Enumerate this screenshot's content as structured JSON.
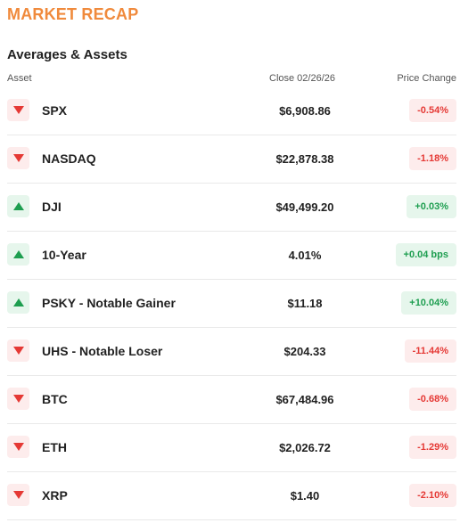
{
  "header": {
    "title": "MARKET RECAP"
  },
  "section": {
    "title": "Averages & Assets"
  },
  "columns": {
    "asset": "Asset",
    "close": "Close 02/26/26",
    "change": "Price Change"
  },
  "colors": {
    "accent": "#f08a3c",
    "down": "#e53935",
    "up": "#1e9e50"
  },
  "rows": [
    {
      "asset": "SPX",
      "close": "$6,908.86",
      "change": "-0.54%",
      "direction": "down",
      "icon": "triangle-down-icon"
    },
    {
      "asset": "NASDAQ",
      "close": "$22,878.38",
      "change": "-1.18%",
      "direction": "down",
      "icon": "triangle-down-icon"
    },
    {
      "asset": "DJI",
      "close": "$49,499.20",
      "change": "+0.03%",
      "direction": "up",
      "icon": "triangle-up-icon"
    },
    {
      "asset": "10-Year",
      "close": "4.01%",
      "change": "+0.04 bps",
      "direction": "up",
      "icon": "triangle-up-icon"
    },
    {
      "asset": "PSKY - Notable Gainer",
      "close": "$11.18",
      "change": "+10.04%",
      "direction": "up",
      "icon": "triangle-up-icon"
    },
    {
      "asset": "UHS - Notable Loser",
      "close": "$204.33",
      "change": "-11.44%",
      "direction": "down",
      "icon": "triangle-down-icon"
    },
    {
      "asset": "BTC",
      "close": "$67,484.96",
      "change": "-0.68%",
      "direction": "down",
      "icon": "triangle-down-icon"
    },
    {
      "asset": "ETH",
      "close": "$2,026.72",
      "change": "-1.29%",
      "direction": "down",
      "icon": "triangle-down-icon"
    },
    {
      "asset": "XRP",
      "close": "$1.40",
      "change": "-2.10%",
      "direction": "down",
      "icon": "triangle-down-icon"
    }
  ]
}
